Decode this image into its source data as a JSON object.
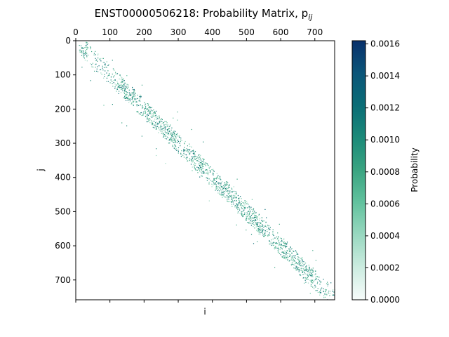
{
  "chart_data": {
    "type": "heatmap",
    "title": "ENST00000506218: Probability Matrix, p",
    "title_subscript": "ij",
    "xlabel": "i",
    "ylabel": "j",
    "xlim": [
      0,
      758
    ],
    "ylim": [
      758,
      0
    ],
    "x_ticks": [
      0,
      100,
      200,
      300,
      400,
      500,
      600,
      700
    ],
    "y_ticks": [
      0,
      100,
      200,
      300,
      400,
      500,
      600,
      700
    ],
    "x_tick_labels": [
      "0",
      "100",
      "200",
      "300",
      "400",
      "500",
      "600",
      "700"
    ],
    "y_tick_labels": [
      "0",
      "100",
      "200",
      "300",
      "400",
      "500",
      "600",
      "700"
    ],
    "x_ticks_position": "top",
    "colormap": "ocean-green",
    "colorbar": {
      "label": "Probability",
      "min": 0,
      "max": 0.00162,
      "ticks": [
        0,
        0.0002,
        0.0004,
        0.0006,
        0.0008,
        0.001,
        0.0012,
        0.0014,
        0.0016
      ],
      "tick_labels": [
        "0.0000",
        "0.0002",
        "0.0004",
        "0.0006",
        "0.0008",
        "0.0010",
        "0.0012",
        "0.0014",
        "0.0016"
      ],
      "colors": [
        "#f7fcfb",
        "#ccece0",
        "#99d8c0",
        "#62c29e",
        "#3aa481",
        "#1b8a79",
        "#0a6d76",
        "#0b5579",
        "#08306b"
      ]
    },
    "diagonal_band": {
      "description": "sparse probability points clustered along the main diagonal i = j",
      "clusters": [
        {
          "i": [
            20,
            40
          ],
          "j": [
            20,
            40
          ]
        },
        {
          "i": [
            120,
            180
          ],
          "j": [
            120,
            180
          ]
        },
        {
          "i": [
            200,
            300
          ],
          "j": [
            200,
            300
          ]
        },
        {
          "i": [
            320,
            380
          ],
          "j": [
            320,
            380
          ]
        },
        {
          "i": [
            400,
            560
          ],
          "j": [
            400,
            560
          ]
        },
        {
          "i": [
            580,
            700
          ],
          "j": [
            580,
            700
          ]
        }
      ]
    }
  }
}
